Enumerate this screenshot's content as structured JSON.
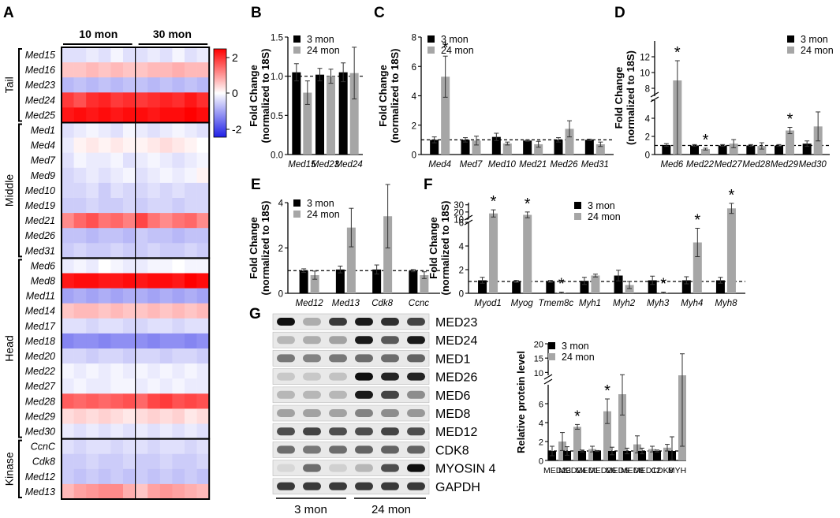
{
  "colors": {
    "young": "#000000",
    "old": "#a6a6a6",
    "heat_high": "#ff0000",
    "heat_mid": "#ffffff",
    "heat_low": "#1f1fe6"
  },
  "common": {
    "ylabel_line1": "Fold Change",
    "ylabel_line2": "(normalized to 18S)",
    "legend_young": "3 mon",
    "legend_old": "24 mon",
    "star": "*"
  },
  "panels": {
    "A": {
      "label": "A",
      "col_group_1": "10 mon",
      "col_group_2": "30 mon",
      "colorbar_ticks": [
        "2",
        "0",
        "-2"
      ]
    },
    "B": {
      "label": "B"
    },
    "C": {
      "label": "C"
    },
    "D": {
      "label": "D"
    },
    "E": {
      "label": "E"
    },
    "F": {
      "label": "F"
    },
    "G": {
      "label": "G",
      "blot_labels": [
        "MED23",
        "MED24",
        "MED1",
        "MED26",
        "MED6",
        "MED8",
        "MED12",
        "CDK8",
        "MYOSIN 4",
        "GAPDH"
      ],
      "blot_intensity": [
        [
          1.0,
          0.25,
          0.8,
          0.95,
          0.85,
          0.75
        ],
        [
          0.2,
          0.25,
          0.3,
          0.95,
          0.65,
          0.95
        ],
        [
          0.5,
          0.45,
          0.5,
          0.55,
          0.55,
          0.6
        ],
        [
          0.12,
          0.12,
          0.15,
          1.0,
          0.9,
          0.9
        ],
        [
          0.2,
          0.2,
          0.2,
          0.95,
          0.75,
          0.4
        ],
        [
          0.3,
          0.3,
          0.3,
          0.45,
          0.4,
          0.35
        ],
        [
          0.7,
          0.75,
          0.7,
          0.7,
          0.75,
          0.7
        ],
        [
          0.55,
          0.5,
          0.55,
          0.6,
          0.6,
          0.6
        ],
        [
          0.05,
          0.55,
          0.08,
          0.2,
          0.7,
          1.0
        ],
        [
          0.8,
          0.8,
          0.8,
          0.8,
          0.8,
          0.8
        ]
      ],
      "group_young": "3 mon",
      "group_old": "24 mon",
      "ylabel": "Relative protein level"
    }
  },
  "chart_data": [
    {
      "panel": "A",
      "type": "heatmap",
      "columns_groups": [
        "10 mon",
        "30 mon"
      ],
      "colorbar": {
        "min": -2,
        "max": 2
      },
      "groups": [
        "Tail",
        "Middle",
        "Head",
        "Kinase"
      ],
      "group_sizes": [
        5,
        9,
        12,
        4
      ],
      "rows": [
        "Med15",
        "Med16",
        "Med23",
        "Med24",
        "Med25",
        "Med1",
        "Med4",
        "Med7",
        "Med9",
        "Med10",
        "Med19",
        "Med21",
        "Med26",
        "Med31",
        "Med6",
        "Med8",
        "Med11",
        "Med14",
        "Med17",
        "Med18",
        "Med20",
        "Med22",
        "Med27",
        "Med28",
        "Med29",
        "Med30",
        "CcnC",
        "Cdk8",
        "Med12",
        "Med13"
      ],
      "values": [
        [
          -0.3,
          -0.3,
          -0.2,
          -0.3,
          -0.1,
          -0.3,
          -0.3,
          -0.2,
          -0.3,
          -0.1,
          -0.3,
          -0.2
        ],
        [
          0.5,
          0.5,
          0.6,
          0.5,
          0.6,
          0.5,
          0.5,
          0.6,
          0.6,
          0.7,
          0.6,
          0.6
        ],
        [
          -0.7,
          -0.6,
          -0.7,
          -0.6,
          -0.7,
          -0.6,
          -0.6,
          -0.7,
          -0.6,
          -0.7,
          -0.6,
          -0.7
        ],
        [
          1.7,
          1.5,
          1.8,
          1.9,
          1.7,
          1.8,
          1.7,
          1.8,
          1.9,
          1.8,
          2.0,
          1.8
        ],
        [
          2.0,
          2.1,
          2.0,
          2.1,
          2.0,
          2.1,
          2.1,
          2.0,
          2.1,
          2.1,
          2.2,
          2.1
        ],
        [
          -0.3,
          -0.2,
          -0.1,
          -0.2,
          -0.3,
          -0.1,
          -0.2,
          -0.3,
          -0.2,
          -0.1,
          -0.2,
          -0.3
        ],
        [
          -0.2,
          0.1,
          0.2,
          0.1,
          0.2,
          0.1,
          0.1,
          0.2,
          0.3,
          0.2,
          0.1,
          0.0
        ],
        [
          -0.3,
          -0.1,
          -0.2,
          -0.2,
          -0.1,
          -0.3,
          -0.2,
          -0.1,
          -0.2,
          -0.3,
          -0.2,
          -0.1
        ],
        [
          -0.4,
          -0.3,
          -0.2,
          -0.3,
          -0.2,
          -0.1,
          -0.3,
          -0.2,
          -0.1,
          -0.2,
          -0.1,
          0.1
        ],
        [
          -0.4,
          -0.4,
          -0.3,
          -0.5,
          -0.3,
          -0.4,
          -0.4,
          -0.3,
          -0.4,
          -0.3,
          -0.4,
          -0.4
        ],
        [
          -0.5,
          -0.5,
          -0.4,
          -0.5,
          -0.5,
          -0.4,
          -0.5,
          -0.4,
          -0.4,
          -0.5,
          -0.4,
          -0.4
        ],
        [
          1.0,
          1.3,
          1.5,
          1.2,
          1.3,
          1.1,
          1.6,
          1.2,
          1.0,
          1.2,
          1.3,
          1.0
        ],
        [
          -0.6,
          -0.6,
          -0.7,
          -0.6,
          -0.6,
          -0.7,
          -0.5,
          -0.6,
          -0.6,
          -0.7,
          -0.6,
          -0.6
        ],
        [
          -0.5,
          -0.4,
          -0.5,
          -0.5,
          -0.4,
          -0.5,
          -0.5,
          -0.4,
          -0.5,
          -0.5,
          -0.4,
          -0.5
        ],
        [
          -0.2,
          -0.1,
          -0.2,
          0.0,
          -0.1,
          -0.2,
          -0.2,
          -0.1,
          -0.1,
          0.0,
          -0.1,
          -0.1
        ],
        [
          2.0,
          2.1,
          2.1,
          2.0,
          2.0,
          2.1,
          2.0,
          2.1,
          2.1,
          2.0,
          2.2,
          2.1
        ],
        [
          -0.9,
          -0.8,
          -0.9,
          -0.8,
          -0.9,
          -0.8,
          -0.8,
          -0.9,
          -0.8,
          -0.9,
          -0.8,
          -0.9
        ],
        [
          0.5,
          0.6,
          0.6,
          0.5,
          0.6,
          0.5,
          0.5,
          0.6,
          0.5,
          0.6,
          0.5,
          0.6
        ],
        [
          -0.3,
          -0.3,
          -0.4,
          -0.3,
          -0.3,
          -0.4,
          -0.4,
          -0.3,
          -0.3,
          -0.4,
          -0.3,
          -0.3
        ],
        [
          -1.2,
          -1.1,
          -1.1,
          -1.2,
          -1.1,
          -1.1,
          -1.1,
          -1.2,
          -1.1,
          -1.1,
          -1.2,
          -1.1
        ],
        [
          -0.4,
          -0.4,
          -0.5,
          -0.4,
          -0.4,
          -0.5,
          -0.4,
          -0.4,
          -0.5,
          -0.4,
          -0.4,
          -0.5
        ],
        [
          -0.1,
          -0.2,
          -0.1,
          -0.2,
          -0.1,
          -0.2,
          -0.1,
          -0.2,
          -0.1,
          -0.2,
          -0.1,
          -0.2
        ],
        [
          -0.2,
          -0.1,
          -0.2,
          -0.2,
          -0.1,
          -0.1,
          -0.2,
          -0.1,
          -0.2,
          -0.1,
          -0.2,
          -0.2
        ],
        [
          1.4,
          1.3,
          1.4,
          1.3,
          1.4,
          1.5,
          1.3,
          1.6,
          1.7,
          1.5,
          1.6,
          1.5
        ],
        [
          0.3,
          0.4,
          0.3,
          0.4,
          0.3,
          0.2,
          0.3,
          0.4,
          0.3,
          0.4,
          0.2,
          0.3
        ],
        [
          -0.2,
          -0.3,
          -0.2,
          -0.3,
          -0.2,
          -0.3,
          -0.2,
          -0.3,
          -0.2,
          -0.3,
          -0.2,
          -0.3
        ],
        [
          -0.3,
          -0.4,
          -0.3,
          -0.3,
          -0.4,
          -0.3,
          -0.3,
          -0.4,
          -0.3,
          -0.3,
          -0.4,
          -0.3
        ],
        [
          -0.5,
          -0.5,
          -0.4,
          -0.5,
          -0.5,
          -0.4,
          -0.5,
          -0.5,
          -0.4,
          -0.5,
          -0.5,
          -0.4
        ],
        [
          -0.5,
          -0.6,
          -0.5,
          -0.6,
          -0.5,
          -0.6,
          -0.5,
          -0.6,
          -0.5,
          -0.6,
          -0.5,
          -0.6
        ],
        [
          0.6,
          0.8,
          0.9,
          1.0,
          1.0,
          0.7,
          0.5,
          0.8,
          0.9,
          0.8,
          0.7,
          0.6
        ]
      ]
    },
    {
      "panel": "B",
      "type": "bar",
      "categories": [
        "Med15",
        "Med23",
        "Med24"
      ],
      "series": [
        {
          "name": "3 mon",
          "values": [
            1.05,
            1.02,
            1.05
          ],
          "errors": [
            0.11,
            0.08,
            0.12
          ]
        },
        {
          "name": "24 mon",
          "values": [
            0.79,
            1.0,
            1.04
          ],
          "errors": [
            0.15,
            0.09,
            0.33
          ]
        }
      ],
      "ylim": [
        0,
        1.5
      ],
      "yticks": [
        0.0,
        0.5,
        1.0,
        1.5
      ],
      "ytick_labels": [
        "0.0",
        "0.5",
        "1.0",
        "1.5"
      ],
      "reference_line": 1.0,
      "significant": []
    },
    {
      "panel": "C",
      "type": "bar",
      "categories": [
        "Med4",
        "Med7",
        "Med10",
        "Med21",
        "Med26",
        "Med31"
      ],
      "series": [
        {
          "name": "3 mon",
          "values": [
            1.0,
            1.0,
            1.2,
            0.95,
            1.0,
            1.0
          ],
          "errors": [
            0.2,
            0.15,
            0.25,
            0.05,
            0.15,
            0.05
          ]
        },
        {
          "name": "24 mon",
          "values": [
            5.3,
            0.95,
            0.75,
            0.7,
            1.75,
            0.7
          ],
          "errors": [
            1.4,
            0.3,
            0.1,
            0.2,
            0.55,
            0.15
          ]
        }
      ],
      "ylim": [
        0,
        8
      ],
      "yticks": [
        0,
        2,
        4,
        6,
        8
      ],
      "ytick_labels": [
        "0",
        "2",
        "4",
        "6",
        "8"
      ],
      "reference_line": 1.0,
      "significant": [
        {
          "category": "Med4",
          "series": "24 mon"
        }
      ]
    },
    {
      "panel": "D",
      "type": "bar",
      "categories": [
        "Med6",
        "Med22",
        "Med27",
        "Med28",
        "Med29",
        "Med30"
      ],
      "series": [
        {
          "name": "3 mon",
          "values": [
            1.05,
            1.0,
            1.0,
            1.0,
            1.0,
            1.2
          ],
          "errors": [
            0.15,
            0.1,
            0.1,
            0.1,
            0.1,
            0.3
          ]
        },
        {
          "name": "24 mon",
          "values": [
            9.0,
            0.6,
            1.2,
            0.95,
            2.65,
            3.1
          ],
          "errors": [
            2.5,
            0.1,
            0.45,
            0.35,
            0.35,
            1.6
          ]
        }
      ],
      "ylim": [
        0,
        14
      ],
      "yticks": [
        0,
        2,
        4,
        6,
        8,
        10,
        12
      ],
      "ytick_labels": [
        "0",
        "2",
        "4",
        "",
        "8",
        "10",
        "12"
      ],
      "axis_break": [
        6,
        7
      ],
      "reference_line": 1.0,
      "significant": [
        {
          "category": "Med6",
          "series": "24 mon"
        },
        {
          "category": "Med22",
          "series": "24 mon"
        },
        {
          "category": "Med29",
          "series": "24 mon"
        }
      ]
    },
    {
      "panel": "E",
      "type": "bar",
      "categories": [
        "Med12",
        "Med13",
        "Cdk8",
        "Ccnc"
      ],
      "series": [
        {
          "name": "3 mon",
          "values": [
            1.0,
            1.05,
            1.05,
            1.0
          ],
          "errors": [
            0.08,
            0.15,
            0.2,
            0.05
          ]
        },
        {
          "name": "24 mon",
          "values": [
            0.8,
            2.9,
            3.4,
            0.8
          ],
          "errors": [
            0.18,
            0.85,
            1.4,
            0.15
          ]
        }
      ],
      "ylim": [
        0,
        4
      ],
      "yticks": [
        0,
        2,
        4
      ],
      "ytick_labels": [
        "0",
        "2",
        "4"
      ],
      "reference_line": 1.0,
      "significant": []
    },
    {
      "panel": "F",
      "type": "bar",
      "categories": [
        "Myod1",
        "Myog",
        "Tmem8c",
        "Myh1",
        "Myh2",
        "Myh3",
        "Myh4",
        "Myh8"
      ],
      "series": [
        {
          "name": "3 mon",
          "values": [
            1.1,
            1.0,
            1.0,
            1.05,
            1.5,
            1.1,
            1.1,
            1.1
          ],
          "errors": [
            0.25,
            0.1,
            0.1,
            0.3,
            0.45,
            0.35,
            0.3,
            0.25
          ]
        },
        {
          "name": "24 mon",
          "values": [
            18.0,
            16.0,
            0.05,
            1.5,
            0.7,
            0.05,
            4.3,
            25.0
          ],
          "errors": [
            5.0,
            4.0,
            0.05,
            0.12,
            0.3,
            0.05,
            1.2,
            7.0
          ]
        }
      ],
      "ylim": [
        0,
        33
      ],
      "yticks": [
        0,
        2,
        4,
        6,
        10,
        20,
        30
      ],
      "ytick_labels": [
        "0",
        "2",
        "4",
        "6",
        "10",
        "20",
        "30"
      ],
      "axis_break": [
        6,
        10
      ],
      "reference_line": 1.0,
      "significant": [
        {
          "category": "Myod1",
          "series": "24 mon"
        },
        {
          "category": "Myog",
          "series": "24 mon"
        },
        {
          "category": "Tmem8c",
          "series": "24 mon"
        },
        {
          "category": "Myh3",
          "series": "24 mon"
        },
        {
          "category": "Myh4",
          "series": "24 mon"
        },
        {
          "category": "Myh8",
          "series": "24 mon"
        }
      ]
    },
    {
      "panel": "G",
      "type": "bar",
      "categories": [
        "MED23",
        "MED24",
        "MED1",
        "MED26",
        "MED6",
        "MED8",
        "MED12",
        "CDK8",
        "MYH"
      ],
      "series": [
        {
          "name": "3 mon",
          "values": [
            1.0,
            1.0,
            1.0,
            1.0,
            1.0,
            1.0,
            1.0,
            1.0,
            1.0
          ],
          "errors": [
            0.5,
            0.45,
            0.1,
            0.05,
            0.4,
            0.3,
            0.3,
            0.1,
            1.5
          ]
        },
        {
          "name": "24 mon",
          "values": [
            2.0,
            3.55,
            1.2,
            5.2,
            7.0,
            1.7,
            1.2,
            1.35,
            9.0
          ],
          "errors": [
            0.95,
            0.25,
            0.3,
            1.3,
            2.2,
            0.9,
            0.3,
            0.35,
            7.5
          ]
        }
      ],
      "ylim": [
        0,
        20
      ],
      "yticks": [
        0,
        2,
        4,
        6,
        10,
        15,
        20
      ],
      "ytick_labels": [
        "0",
        "2",
        "4",
        "6",
        "10",
        "15",
        "20"
      ],
      "axis_break": [
        8,
        9
      ],
      "reference_line": 1.0,
      "significant": [
        {
          "category": "MED24",
          "series": "24 mon"
        },
        {
          "category": "MED26",
          "series": "24 mon"
        }
      ]
    }
  ]
}
